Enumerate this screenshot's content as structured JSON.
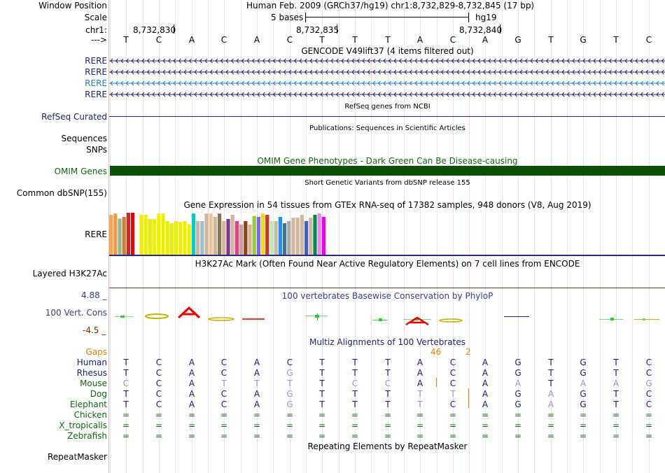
{
  "header": {
    "labels": {
      "window_position": "Window Position",
      "scale": "Scale",
      "chrom": "chr1:",
      "strand": "--->"
    },
    "position_text": "Human Feb. 2009 (GRCh37/hg19)   chr1:8,732,829-8,732,845 (17 bp)",
    "scale_text": "5 bases",
    "assembly": "hg19",
    "coord_ticks": [
      "8,732,830",
      "8,732,835",
      "8,732,840"
    ]
  },
  "sequence": [
    "T",
    "C",
    "A",
    "C",
    "A",
    "C",
    "T",
    "T",
    "T",
    "A",
    "C",
    "A",
    "G",
    "T",
    "G",
    "T",
    "C"
  ],
  "tracks": {
    "gencode": {
      "title": "GENCODE V49lift37 (4 items filtered out)",
      "items": [
        "RERE",
        "RERE",
        "RERE",
        "RERE"
      ]
    },
    "refseq": {
      "label": "RefSeq Curated",
      "title": "RefSeq genes from NCBI"
    },
    "publications": {
      "title": "Publications: Sequences in Scientific Articles",
      "label1": "Sequences",
      "label2": "SNPs"
    },
    "omim": {
      "title": "OMIM Gene Phenotypes - Dark Green Can Be Disease-causing",
      "label": "OMIM Genes",
      "color": "#0b5207"
    },
    "dbsnp": {
      "title": "Short Genetic Variants from dbSNP release 155",
      "label": "Common dbSNP(155)"
    },
    "gtex": {
      "title": "Gene Expression in 54 tissues from GTEx RNA-seq of 17382 samples, 948 donors (V8, Aug 2019)",
      "label": "RERE",
      "bar_values": [
        0.95,
        0.98,
        0.86,
        0.9,
        1.0,
        1.0,
        0.9,
        0.95,
        0.95,
        0.85,
        0.85,
        0.98,
        0.98,
        0.8,
        0.75,
        0.8,
        0.78,
        0.8,
        0.72,
        0.98,
        0.8,
        0.8,
        0.98,
        0.98,
        0.9,
        0.98,
        0.8,
        0.85,
        0.95,
        0.8,
        0.72,
        0.8,
        0.72,
        0.92,
        0.9,
        0.98,
        0.95,
        0.8,
        0.8,
        0.9,
        0.75,
        0.8,
        0.88,
        0.88,
        0.95,
        0.8,
        0.88,
        0.95,
        0.98,
        0.9,
        0.72
      ],
      "bar_colors": [
        "#ffa54f",
        "#ee9a49",
        "#8fbc8f",
        "#cd7f32",
        "#cd2626",
        "#ee0000",
        "#ffffff",
        "#eeee00",
        "#eeee00",
        "#eeee00",
        "#eeee00",
        "#eeee00",
        "#eeee00",
        "#eeee00",
        "#eeee00",
        "#eeee00",
        "#eeee00",
        "#eeee00",
        "#eeee00",
        "#00cdcd",
        "#cdb79e",
        "#9ac0cd",
        "#cdb79e",
        "#eec591",
        "#cdb79e",
        "#8b7355",
        "#cdb79e",
        "#7a378b",
        "#cdb79e",
        "#ee3a8c",
        "#cd9b9b",
        "#8b4513",
        "#cdb79e",
        "#9acd32",
        "#7a67ee",
        "#ffd700",
        "#cd3333",
        "#b4eeb4",
        "#cdb79e",
        "#1e90ff",
        "#4a708b",
        "#a6a6a6",
        "#cdb79e",
        "#cdb79e",
        "#cdb79e",
        "#3a5fcd",
        "#cdb79e",
        "#008b45",
        "#ee82ee",
        "#ee00ee",
        "#ffffff"
      ]
    },
    "h3k27ac": {
      "title": "H3K27Ac Mark (Often Found Near Active Regulatory Elements) on 7 cell lines from ENCODE",
      "label": "Layered H3K27Ac"
    },
    "phylop": {
      "title": "100 vertebrates Basewise Conservation by PhyloP",
      "label": "100 Vert. Cons",
      "max_label": "4.88 _",
      "min_label": "-4.5 _"
    },
    "multiz": {
      "title": "Multiz Alignments of 100 Vertebrates",
      "gaps_label": "Gaps",
      "gap_numbers": [
        "46",
        "2"
      ],
      "species": [
        {
          "name": "Human",
          "color": "#1a1a73",
          "bases": [
            "T",
            "C",
            "A",
            "C",
            "A",
            "C",
            "T",
            "T",
            "T",
            "A",
            "C",
            "A",
            "G",
            "T",
            "G",
            "T",
            "C"
          ]
        },
        {
          "name": "Rhesus",
          "color": "#1a1a73",
          "bases": [
            "T",
            "C",
            "A",
            "C",
            "A",
            "G",
            "T",
            "T",
            "T",
            "A",
            "C",
            "A",
            "G",
            "T",
            "G",
            "T",
            "C"
          ]
        },
        {
          "name": "Mouse",
          "color": "#146414",
          "bases": [
            "C",
            "C",
            "A",
            "T",
            "T",
            "T",
            "T",
            "C",
            "C",
            "A",
            "C",
            "A",
            "A",
            "T",
            "A",
            "A",
            "G"
          ]
        },
        {
          "name": "Dog",
          "color": "#146414",
          "bases": [
            "T",
            "C",
            "A",
            "C",
            "A",
            "G",
            "T",
            "T",
            "T",
            "T",
            "T",
            "A",
            "G",
            "A",
            "G",
            "T",
            "C"
          ]
        },
        {
          "name": "Elephant",
          "color": "#146414",
          "bases": [
            "T",
            "C",
            "A",
            "C",
            "A",
            "G",
            "T",
            "T",
            "T",
            "T",
            "C",
            "A",
            "G",
            "A",
            "G",
            "T",
            "C"
          ]
        },
        {
          "name": "Chicken",
          "color": "#146414",
          "bases": [
            "=",
            "=",
            "=",
            "=",
            "=",
            "=",
            "=",
            "=",
            "=",
            "=",
            "=",
            "=",
            "=",
            "=",
            "=",
            "=",
            "="
          ]
        },
        {
          "name": "X_tropicalis",
          "color": "#146414",
          "bases": [
            "=",
            "=",
            "=",
            "=",
            "=",
            "=",
            "=",
            "=",
            "=",
            "=",
            "=",
            "=",
            "=",
            "=",
            "=",
            "=",
            "="
          ]
        },
        {
          "name": "Zebrafish",
          "color": "#146414",
          "bases": [
            "=",
            "=",
            "=",
            "=",
            "=",
            "=",
            "=",
            "=",
            "=",
            "=",
            "=",
            "=",
            "=",
            "=",
            "=",
            "=",
            "="
          ]
        }
      ]
    },
    "repeatmasker": {
      "title": "Repeating Elements by RepeatMasker",
      "label": "RepeatMasker"
    }
  }
}
